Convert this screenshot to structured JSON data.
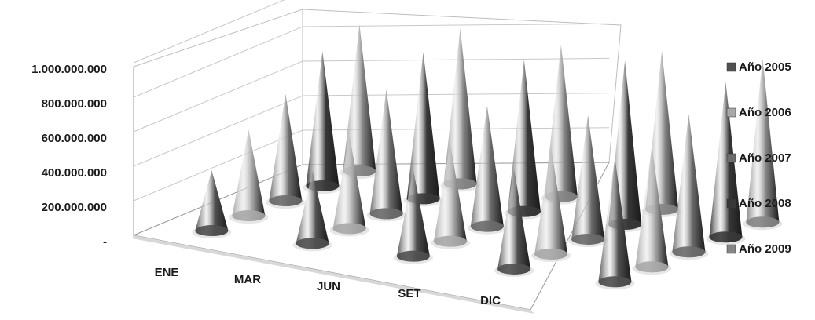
{
  "chart_data": {
    "type": "3d-cone",
    "title": "",
    "categories": [
      "ENE",
      "MAR",
      "JUN",
      "SET",
      "DIC"
    ],
    "y_tick_labels": [
      "-",
      "200.000.000",
      "400.000.000",
      "600.000.000",
      "800.000.000",
      "1.000.000.000"
    ],
    "ylim": [
      0,
      1000000000
    ],
    "series": [
      {
        "name": "Año 2005",
        "color": "#505050",
        "values": [
          350000000,
          420000000,
          500000000,
          580000000,
          720000000
        ]
      },
      {
        "name": "Año 2006",
        "color": "#a8a8a8",
        "values": [
          500000000,
          540000000,
          570000000,
          620000000,
          700000000
        ]
      },
      {
        "name": "Año 2007",
        "color": "#6c6c6c",
        "values": [
          620000000,
          720000000,
          700000000,
          720000000,
          800000000
        ]
      },
      {
        "name": "Año 2008",
        "color": "#383838",
        "values": [
          780000000,
          850000000,
          880000000,
          950000000,
          900000000
        ]
      },
      {
        "name": "Año 2009",
        "color": "#858585",
        "values": [
          850000000,
          900000000,
          880000000,
          920000000,
          950000000
        ]
      }
    ],
    "legend_position": "right",
    "grid": true
  }
}
